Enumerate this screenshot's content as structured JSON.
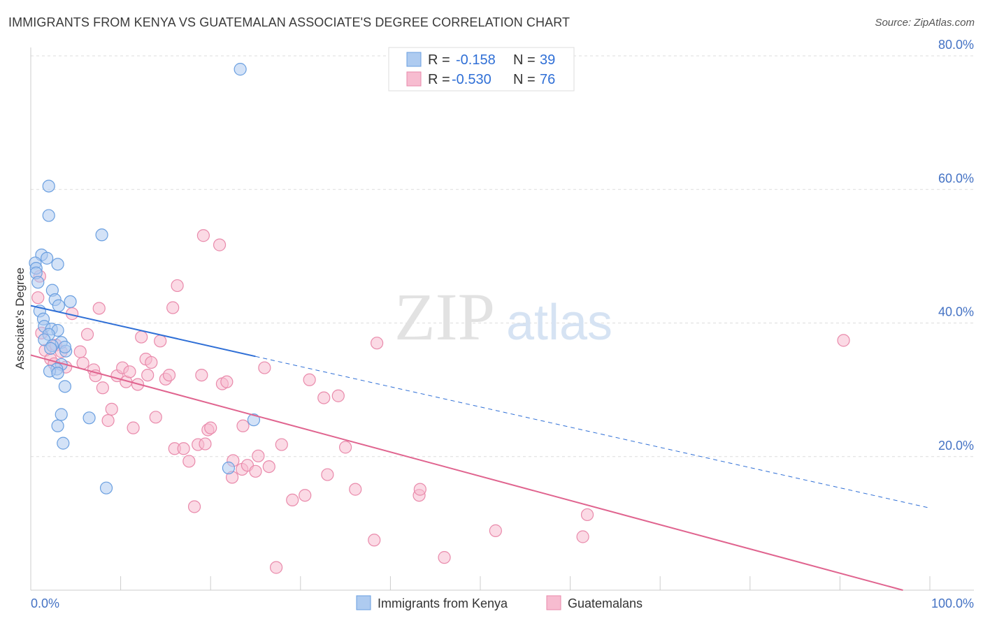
{
  "title": "IMMIGRANTS FROM KENYA VS GUATEMALAN ASSOCIATE'S DEGREE CORRELATION CHART",
  "source": "Source: ZipAtlas.com",
  "watermark": {
    "zip": "ZIP",
    "atlas": "atlas"
  },
  "colors": {
    "kenya_fill": "#aecbf0",
    "kenya_stroke": "#6a9fe0",
    "kenya_line": "#2f6fd6",
    "guat_fill": "#f7bcd0",
    "guat_stroke": "#e98aab",
    "guat_line": "#e0648f",
    "grid": "#dddddd",
    "axis": "#cccccc",
    "tick_text": "#4472c4"
  },
  "legend": {
    "rows": [
      {
        "r_label": "R = ",
        "r_value": "-0.158",
        "n_label": "N = ",
        "n_value": "39"
      },
      {
        "r_label": "R = ",
        "r_value": "-0.530",
        "n_label": "N = ",
        "n_value": "76"
      }
    ]
  },
  "chart_data": {
    "type": "scatter",
    "xlabel": "",
    "ylabel": "Associate's Degree",
    "xlim": [
      0,
      100
    ],
    "ylim": [
      0,
      80
    ],
    "x_tick_labels": [
      "0.0%",
      "100.0%"
    ],
    "y_ticks": [
      {
        "value": 20,
        "label": "20.0%"
      },
      {
        "value": 40,
        "label": "40.0%"
      },
      {
        "value": 60,
        "label": "60.0%"
      },
      {
        "value": 80,
        "label": "80.0%"
      }
    ],
    "grid": "horizontal dashed",
    "legend_placement": "top-center",
    "series": [
      {
        "name": "Immigrants from Kenya",
        "color": "#6a9fe0",
        "trend": {
          "x0": 0,
          "y0": 42.6,
          "x1": 25,
          "y1": 35.0,
          "dashed_to_x": 100,
          "dashed_to_y": 12.3
        },
        "points": [
          [
            23.3,
            78.0
          ],
          [
            2.0,
            60.5
          ],
          [
            2.0,
            56.1
          ],
          [
            7.9,
            53.2
          ],
          [
            1.2,
            50.2
          ],
          [
            1.8,
            49.7
          ],
          [
            0.5,
            49.0
          ],
          [
            0.6,
            48.2
          ],
          [
            0.6,
            47.5
          ],
          [
            0.8,
            46.1
          ],
          [
            3.0,
            48.8
          ],
          [
            2.4,
            44.9
          ],
          [
            2.7,
            43.5
          ],
          [
            3.1,
            42.6
          ],
          [
            1.0,
            41.8
          ],
          [
            1.4,
            40.6
          ],
          [
            1.5,
            39.5
          ],
          [
            2.3,
            39.1
          ],
          [
            3.0,
            38.9
          ],
          [
            2.0,
            38.3
          ],
          [
            1.5,
            37.5
          ],
          [
            3.4,
            37.1
          ],
          [
            4.4,
            43.2
          ],
          [
            2.4,
            36.6
          ],
          [
            3.9,
            35.8
          ],
          [
            3.4,
            33.8
          ],
          [
            2.9,
            33.1
          ],
          [
            2.1,
            32.8
          ],
          [
            3.0,
            32.5
          ],
          [
            3.8,
            30.5
          ],
          [
            3.4,
            26.3
          ],
          [
            6.5,
            25.8
          ],
          [
            3.0,
            24.6
          ],
          [
            24.8,
            25.5
          ],
          [
            3.6,
            22.0
          ],
          [
            8.4,
            15.3
          ],
          [
            22.0,
            18.3
          ],
          [
            3.8,
            36.4
          ],
          [
            2.2,
            36.2
          ]
        ]
      },
      {
        "name": "Guatemalans",
        "color": "#e98aab",
        "trend": {
          "x0": 0,
          "y0": 35.2,
          "x1": 97,
          "y1": 0
        },
        "points": [
          [
            1.0,
            47.0
          ],
          [
            0.8,
            43.8
          ],
          [
            1.2,
            38.5
          ],
          [
            1.6,
            35.9
          ],
          [
            2.2,
            34.6
          ],
          [
            2.6,
            33.9
          ],
          [
            2.8,
            36.7
          ],
          [
            3.4,
            35.7
          ],
          [
            3.9,
            33.4
          ],
          [
            4.6,
            41.4
          ],
          [
            5.5,
            35.7
          ],
          [
            5.8,
            34.0
          ],
          [
            6.3,
            38.3
          ],
          [
            7.0,
            33.0
          ],
          [
            7.6,
            42.2
          ],
          [
            8.0,
            30.3
          ],
          [
            7.2,
            32.1
          ],
          [
            8.6,
            25.4
          ],
          [
            9.0,
            27.1
          ],
          [
            9.6,
            32.1
          ],
          [
            10.2,
            33.3
          ],
          [
            10.6,
            31.2
          ],
          [
            11.0,
            32.7
          ],
          [
            11.4,
            24.3
          ],
          [
            11.9,
            30.8
          ],
          [
            12.3,
            37.9
          ],
          [
            12.8,
            34.6
          ],
          [
            13.0,
            32.2
          ],
          [
            13.4,
            34.1
          ],
          [
            13.9,
            25.9
          ],
          [
            14.4,
            37.3
          ],
          [
            15.0,
            31.6
          ],
          [
            15.4,
            32.2
          ],
          [
            15.8,
            42.3
          ],
          [
            16.0,
            21.2
          ],
          [
            16.3,
            45.6
          ],
          [
            17.0,
            21.2
          ],
          [
            17.6,
            19.3
          ],
          [
            18.2,
            12.5
          ],
          [
            18.6,
            21.8
          ],
          [
            19.0,
            32.2
          ],
          [
            19.4,
            21.9
          ],
          [
            19.7,
            24.0
          ],
          [
            20.0,
            24.3
          ],
          [
            19.2,
            53.1
          ],
          [
            21.0,
            51.7
          ],
          [
            21.3,
            30.9
          ],
          [
            21.8,
            31.2
          ],
          [
            22.4,
            16.9
          ],
          [
            22.5,
            19.4
          ],
          [
            23.5,
            18.1
          ],
          [
            23.6,
            24.6
          ],
          [
            24.1,
            18.7
          ],
          [
            25.0,
            17.8
          ],
          [
            25.3,
            20.1
          ],
          [
            26.0,
            33.3
          ],
          [
            26.5,
            18.5
          ],
          [
            27.3,
            3.4
          ],
          [
            27.9,
            21.8
          ],
          [
            29.1,
            13.5
          ],
          [
            30.5,
            14.2
          ],
          [
            31.0,
            31.5
          ],
          [
            32.6,
            28.8
          ],
          [
            33.0,
            17.3
          ],
          [
            34.2,
            29.1
          ],
          [
            35.0,
            21.4
          ],
          [
            36.1,
            15.1
          ],
          [
            38.2,
            7.5
          ],
          [
            38.5,
            37.0
          ],
          [
            43.2,
            14.2
          ],
          [
            43.3,
            15.1
          ],
          [
            46.0,
            4.9
          ],
          [
            51.7,
            8.9
          ],
          [
            61.4,
            8.0
          ],
          [
            61.9,
            11.3
          ],
          [
            90.4,
            37.4
          ]
        ]
      }
    ]
  }
}
